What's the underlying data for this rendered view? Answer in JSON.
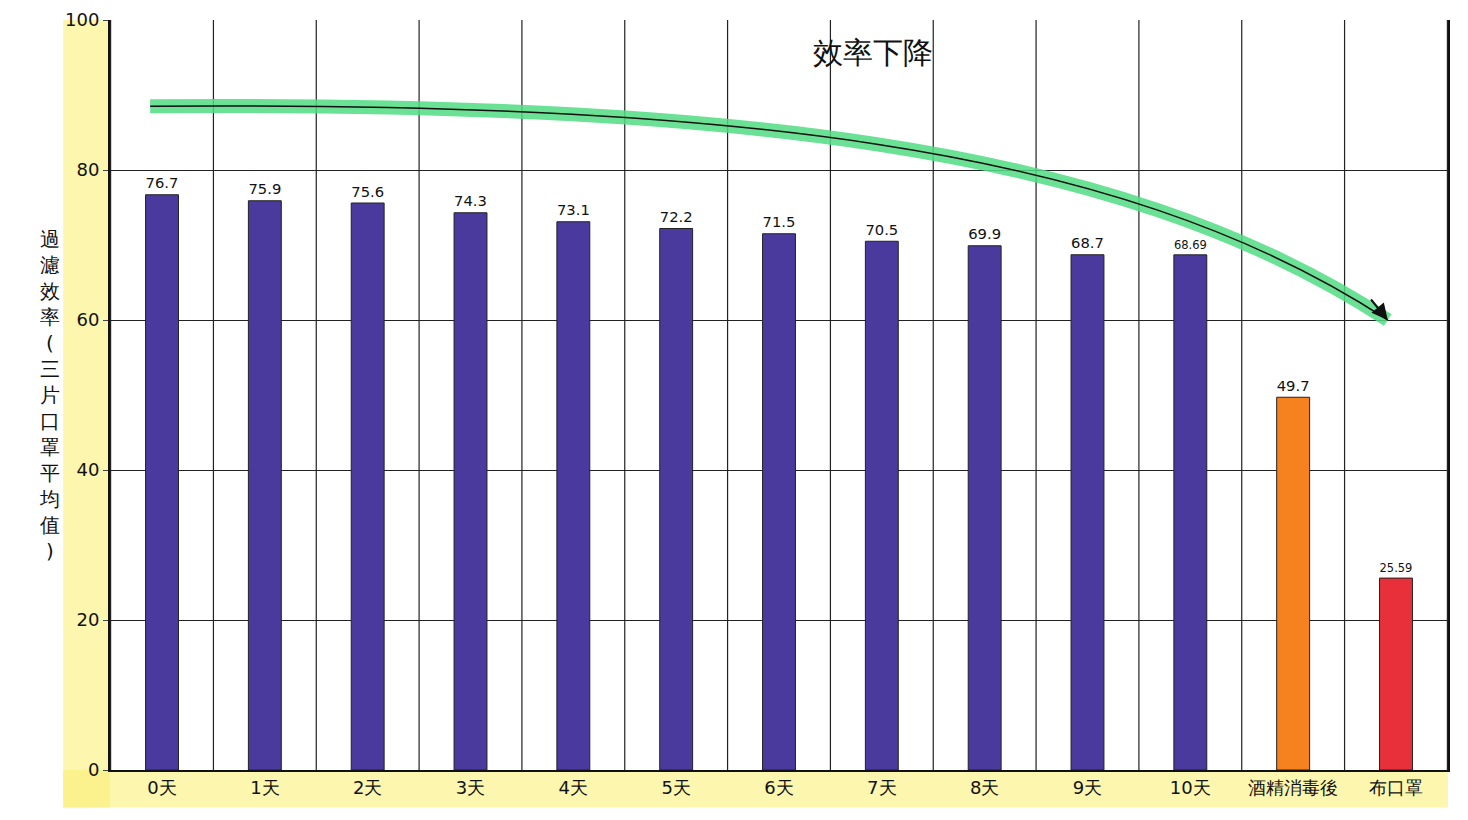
{
  "chart_data": {
    "type": "bar",
    "y_label": "過濾效率(三片口罩平均值)",
    "annotations": [
      "效率下降"
    ],
    "categories": [
      "0天",
      "1天",
      "2天",
      "3天",
      "4天",
      "5天",
      "6天",
      "7天",
      "8天",
      "9天",
      "10天",
      "酒精消毒後",
      "布口罩"
    ],
    "values": [
      76.7,
      75.9,
      75.6,
      74.3,
      73.1,
      72.2,
      71.5,
      70.5,
      69.9,
      68.7,
      68.69,
      49.7,
      25.59
    ],
    "colors": [
      "#4b3a9e",
      "#4b3a9e",
      "#4b3a9e",
      "#4b3a9e",
      "#4b3a9e",
      "#4b3a9e",
      "#4b3a9e",
      "#4b3a9e",
      "#4b3a9e",
      "#4b3a9e",
      "#4b3a9e",
      "#f5821f",
      "#e8303a"
    ],
    "ylim": [
      0,
      100
    ],
    "yticks": [
      0,
      20,
      40,
      60,
      80,
      100
    ],
    "grid": true,
    "data_labels": true
  }
}
